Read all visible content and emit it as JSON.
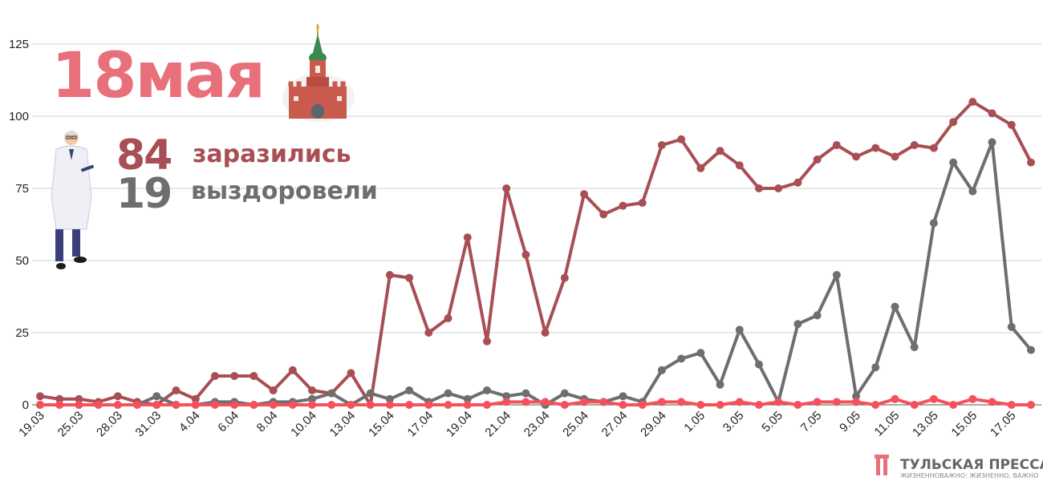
{
  "headline": {
    "date": "18мая",
    "infected_value": "84",
    "infected_label": "заразились",
    "recovered_value": "19",
    "recovered_label": "выздоровели"
  },
  "branding": {
    "name": "ТУЛЬСКАЯ ПРЕССА",
    "tagline": "ЖИЗНЕННОВАЖНО: ЖИЗНЕННО, ВАЖНО"
  },
  "colors": {
    "infected": "#a84f55",
    "recovered": "#6e6e6e",
    "deaths": "#f4515c",
    "headline": "#e8707a",
    "grid": "#d0d0d0"
  },
  "chart_data": {
    "type": "line",
    "grid": true,
    "ylim": [
      0,
      125
    ],
    "y_ticks": [
      "0",
      "25",
      "50",
      "75",
      "100",
      "125"
    ],
    "x": [
      "19.03",
      "22.03",
      "25.03",
      "26.03",
      "28.03",
      "30.03",
      "31.03",
      "2.04",
      "4.04",
      "5.04",
      "6.04",
      "7.04",
      "8.04",
      "9.04",
      "10.04",
      "12.04",
      "13.04",
      "14.04",
      "15.04",
      "16.04",
      "17.04",
      "18.04",
      "19.04",
      "20.04",
      "21.04",
      "22.04",
      "23.04",
      "24.04",
      "25.04",
      "26.04",
      "27.04",
      "28.04",
      "29.04",
      "30.04",
      "1.05",
      "2.05",
      "3.05",
      "4.05",
      "5.05",
      "6.05",
      "7.05",
      "8.05",
      "9.05",
      "10.05",
      "11.05",
      "12.05",
      "13.05",
      "14.05",
      "15.05",
      "16.05",
      "17.05",
      "18.05"
    ],
    "x_tick_labels": [
      "19.03",
      "25.03",
      "28.03",
      "31.03",
      "4.04",
      "6.04",
      "8.04",
      "10.04",
      "13.04",
      "15.04",
      "17.04",
      "19.04",
      "21.04",
      "23.04",
      "25.04",
      "27.04",
      "29.04",
      "1.05",
      "3.05",
      "5.05",
      "7.05",
      "9.05",
      "11.05",
      "13.05",
      "15.05",
      "17.05"
    ],
    "series": [
      {
        "key": "infected",
        "values": [
          3,
          2,
          2,
          1,
          3,
          1,
          0,
          5,
          2,
          10,
          10,
          10,
          5,
          12,
          5,
          4,
          11,
          0,
          45,
          44,
          25,
          30,
          58,
          22,
          75,
          52,
          25,
          44,
          73,
          66,
          69,
          70,
          90,
          92,
          82,
          88,
          83,
          75,
          75,
          77,
          85,
          90,
          86,
          89,
          86,
          90,
          89,
          98,
          105,
          101,
          97,
          84
        ]
      },
      {
        "key": "recovered",
        "values": [
          0,
          0,
          0,
          0,
          0,
          0,
          3,
          0,
          0,
          1,
          1,
          0,
          1,
          1,
          2,
          4,
          0,
          4,
          2,
          5,
          1,
          4,
          2,
          5,
          3,
          4,
          0,
          4,
          2,
          1,
          3,
          1,
          12,
          16,
          18,
          7,
          26,
          14,
          1,
          28,
          31,
          45,
          3,
          13,
          34,
          20,
          63,
          84,
          74,
          91,
          27,
          19
        ]
      },
      {
        "key": "deaths",
        "values": [
          0,
          0,
          0,
          0,
          0,
          0,
          0,
          0,
          0,
          0,
          0,
          0,
          0,
          0,
          0,
          0,
          0,
          0,
          0,
          0,
          0,
          0,
          0,
          0,
          1,
          1,
          1,
          0,
          1,
          1,
          0,
          0,
          1,
          1,
          0,
          0,
          1,
          0,
          1,
          0,
          1,
          1,
          1,
          0,
          2,
          0,
          2,
          0,
          2,
          1,
          0,
          0
        ]
      }
    ]
  }
}
